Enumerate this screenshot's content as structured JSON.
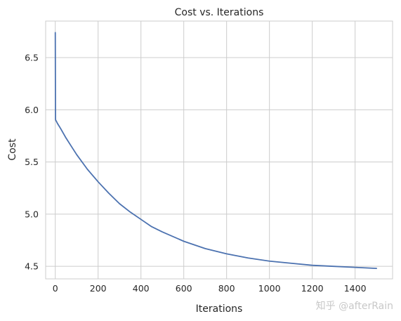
{
  "chart_data": {
    "type": "line",
    "title": "Cost vs. Iterations",
    "xlabel": "Iterations",
    "ylabel": "Cost",
    "xlim": [
      -45,
      1575
    ],
    "ylim": [
      4.38,
      6.85
    ],
    "xticks": [
      0,
      200,
      400,
      600,
      800,
      1000,
      1200,
      1400
    ],
    "yticks": [
      4.5,
      5.0,
      5.5,
      6.0,
      6.5
    ],
    "xtick_labels": [
      "0",
      "200",
      "400",
      "600",
      "800",
      "1000",
      "1200",
      "1400"
    ],
    "ytick_labels": [
      "4.5",
      "5.0",
      "5.5",
      "6.0",
      "6.5"
    ],
    "grid": true,
    "series": [
      {
        "color": "#4c72b0",
        "x": [
          0,
          1,
          2,
          5,
          10,
          25,
          50,
          75,
          100,
          150,
          200,
          250,
          300,
          350,
          400,
          450,
          500,
          600,
          700,
          800,
          900,
          1000,
          1100,
          1200,
          1300,
          1400,
          1500
        ],
        "y": [
          6.74,
          5.91,
          5.9,
          5.89,
          5.87,
          5.82,
          5.73,
          5.65,
          5.57,
          5.43,
          5.31,
          5.2,
          5.1,
          5.02,
          4.95,
          4.88,
          4.83,
          4.74,
          4.67,
          4.62,
          4.58,
          4.55,
          4.53,
          4.51,
          4.5,
          4.49,
          4.48
        ]
      }
    ]
  },
  "watermark": "知乎 @afterRain"
}
